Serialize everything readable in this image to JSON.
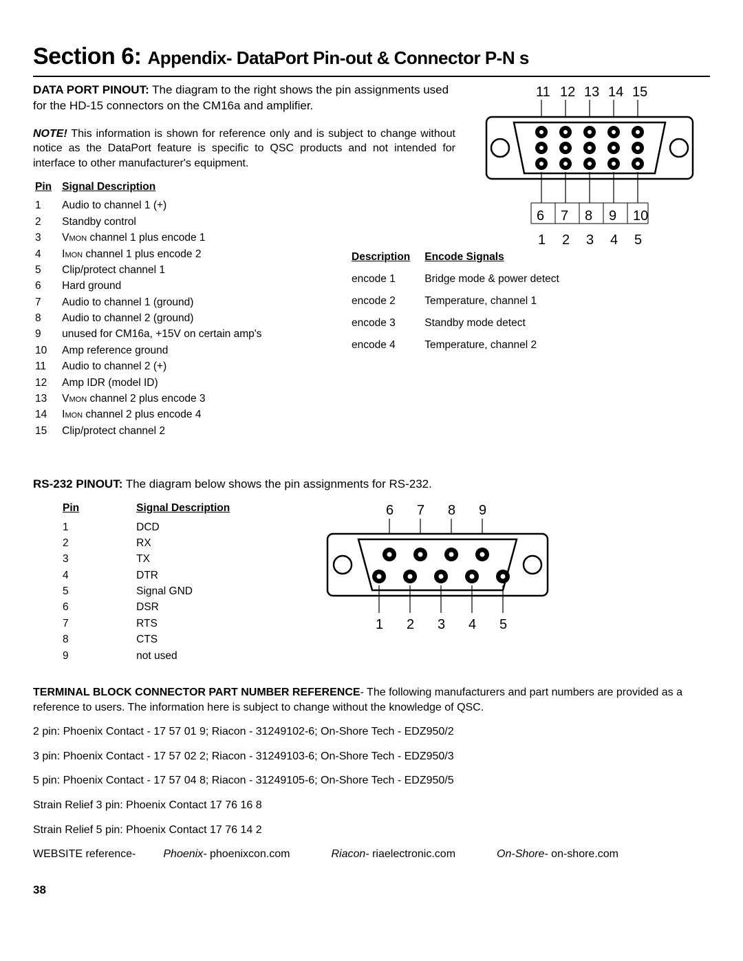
{
  "title_main": "Section 6:",
  "title_sub": "Appendix- DataPort Pin-out & Connector P-N s",
  "intro_bold": "DATA PORT PINOUT:",
  "intro_text": " The diagram to the right shows the pin assignments used for the HD-15 connectors on the CM16a and amplifier.",
  "note_bold": "NOTE!",
  "note_text": " This information is shown for reference only and is subject to change without notice as the DataPort feature is specific to QSC products and not intended for interface to other manufacturer's equipment.",
  "pin_header_pin": "Pin",
  "pin_header_sig": "Signal Description",
  "pins15": [
    {
      "n": "1",
      "d": "Audio to channel 1 (+)"
    },
    {
      "n": "2",
      "d": "Standby control"
    },
    {
      "n": "3",
      "d": "V",
      "sub": "MON",
      "d2": " channel 1 plus encode 1"
    },
    {
      "n": "4",
      "d": "I",
      "sub": "MON",
      "d2": " channel 1 plus encode 2"
    },
    {
      "n": "5",
      "d": "Clip/protect channel 1"
    },
    {
      "n": "6",
      "d": "Hard ground"
    },
    {
      "n": "7",
      "d": "Audio to channel 1 (ground)"
    },
    {
      "n": "8",
      "d": "Audio to channel 2 (ground)"
    },
    {
      "n": "9",
      "d": "unused for CM16a, +15V on certain amp's"
    },
    {
      "n": "10",
      "d": "Amp reference ground"
    },
    {
      "n": "11",
      "d": "Audio to channel 2 (+)"
    },
    {
      "n": "12",
      "d": "Amp IDR (model ID)"
    },
    {
      "n": "13",
      "d": "V",
      "sub": "MON",
      "d2": " channel 2 plus encode 3"
    },
    {
      "n": "14",
      "d": "I",
      "sub": "MON",
      "d2": " channel 2 plus encode 4"
    },
    {
      "n": "15",
      "d": "Clip/protect channel 2"
    }
  ],
  "encode_h1": "Description",
  "encode_h2": "Encode Signals",
  "encodes": [
    {
      "e": "encode 1",
      "d": "Bridge mode & power detect"
    },
    {
      "e": "encode 2",
      "d": "Temperature, channel 1"
    },
    {
      "e": "encode 3",
      "d": "Standby mode detect"
    },
    {
      "e": "encode 4",
      "d": "Temperature, channel 2"
    }
  ],
  "rs232_bold": "RS-232 PINOUT:",
  "rs232_text": " The diagram below shows the pin assignments for RS-232.",
  "rs232_h_pin": "Pin",
  "rs232_h_sig": "Signal Description",
  "pins9": [
    {
      "n": "1",
      "d": "DCD"
    },
    {
      "n": "2",
      "d": "RX"
    },
    {
      "n": "3",
      "d": "TX"
    },
    {
      "n": "4",
      "d": "DTR"
    },
    {
      "n": "5",
      "d": "Signal GND"
    },
    {
      "n": "6",
      "d": "DSR"
    },
    {
      "n": "7",
      "d": "RTS"
    },
    {
      "n": "8",
      "d": "CTS"
    },
    {
      "n": "9",
      "d": "not used"
    }
  ],
  "term_bold": "TERMINAL BLOCK CONNECTOR PART NUMBER REFERENCE",
  "term_text": "- The following manufacturers and part numbers are provided as a reference to users. The information here is subject to change without the knowledge of QSC.",
  "term_lines": [
    "2 pin: Phoenix Contact - 17 57 01 9; Riacon - 31249102-6; On-Shore Tech - EDZ950/2",
    "3 pin: Phoenix Contact - 17 57 02 2; Riacon - 31249103-6; On-Shore Tech - EDZ950/3",
    "5 pin: Phoenix Contact - 17 57 04 8; Riacon - 31249105-6; On-Shore Tech - EDZ950/5",
    "Strain Relief 3 pin: Phoenix Contact 17 76 16 8",
    "Strain Relief 5 pin: Phoenix Contact 17 76 14 2"
  ],
  "website_label": "WEBSITE reference-",
  "website_items": [
    {
      "i": "Phoenix-",
      "t": " phoenixcon.com"
    },
    {
      "i": "Riacon-",
      "t": " riaelectronic.com"
    },
    {
      "i": "On-Shore-",
      "t": " on-shore.com"
    }
  ],
  "page_num": "38",
  "hd15_top": [
    "11",
    "12",
    "13",
    "14",
    "15"
  ],
  "hd15_mid": [
    "6",
    "7",
    "8",
    "9",
    "10"
  ],
  "hd15_bot": [
    "1",
    "2",
    "3",
    "4",
    "5"
  ],
  "db9_top": [
    "6",
    "7",
    "8",
    "9"
  ],
  "db9_bot": [
    "1",
    "2",
    "3",
    "4",
    "5"
  ],
  "colors": {
    "bg": "#ffffff",
    "fg": "#000000"
  }
}
